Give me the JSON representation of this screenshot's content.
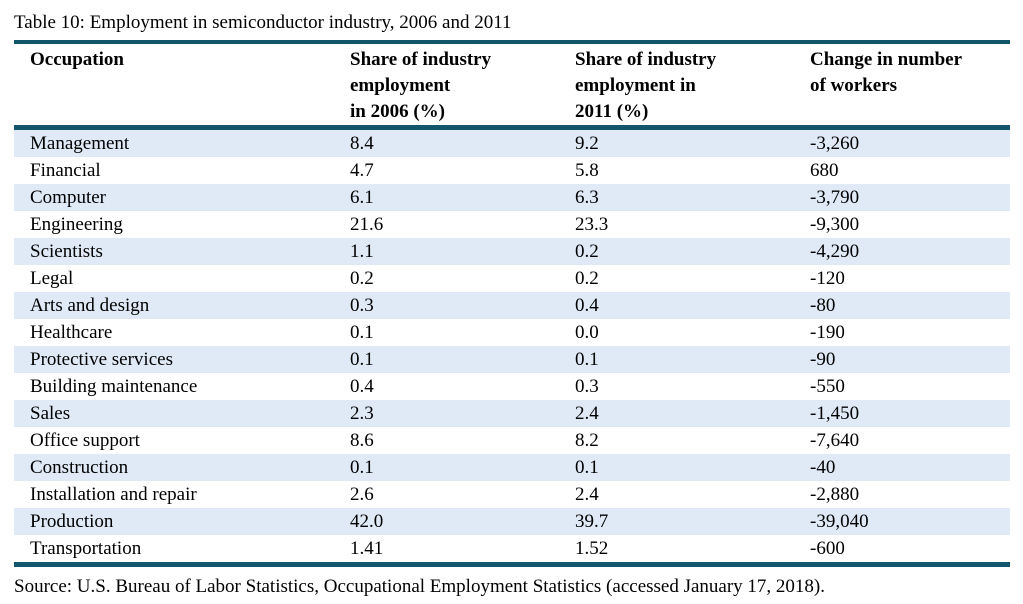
{
  "page": {
    "title": "Table 10: Employment in semiconductor industry, 2006 and 2011",
    "source": "Source: U.S. Bureau of Labor Statistics, Occupational Employment Statistics (accessed January 17, 2018)."
  },
  "colors": {
    "rule": "#12566b",
    "row_stripe": "#e0eaf6"
  },
  "table": {
    "headers": [
      "Occupation",
      "Share of industry\nemployment\nin 2006 (%)",
      "Share of industry\nemployment in\n2011 (%)",
      "Change in number\nof workers"
    ],
    "rows": [
      [
        "Management",
        "8.4",
        "9.2",
        "-3,260"
      ],
      [
        "Financial",
        "4.7",
        "5.8",
        "680"
      ],
      [
        "Computer",
        "6.1",
        "6.3",
        "-3,790"
      ],
      [
        "Engineering",
        "21.6",
        "23.3",
        "-9,300"
      ],
      [
        "Scientists",
        "1.1",
        "0.2",
        "-4,290"
      ],
      [
        "Legal",
        "0.2",
        "0.2",
        "-120"
      ],
      [
        "Arts and design",
        "0.3",
        "0.4",
        "-80"
      ],
      [
        "Healthcare",
        "0.1",
        "0.0",
        "-190"
      ],
      [
        "Protective services",
        "0.1",
        "0.1",
        "-90"
      ],
      [
        "Building maintenance",
        "0.4",
        "0.3",
        "-550"
      ],
      [
        "Sales",
        "2.3",
        "2.4",
        "-1,450"
      ],
      [
        "Office support",
        "8.6",
        "8.2",
        "-7,640"
      ],
      [
        "Construction",
        "0.1",
        "0.1",
        "-40"
      ],
      [
        "Installation and repair",
        "2.6",
        "2.4",
        "-2,880"
      ],
      [
        "Production",
        "42.0",
        "39.7",
        "-39,040"
      ],
      [
        "Transportation",
        "1.41",
        "1.52",
        "-600"
      ]
    ]
  },
  "chart_data": {
    "type": "table",
    "title": "Table 10: Employment in semiconductor industry, 2006 and 2011",
    "columns": [
      "Occupation",
      "Share of industry employment in 2006 (%)",
      "Share of industry employment in 2011 (%)",
      "Change in number of workers"
    ],
    "categories": [
      "Management",
      "Financial",
      "Computer",
      "Engineering",
      "Scientists",
      "Legal",
      "Arts and design",
      "Healthcare",
      "Protective services",
      "Building maintenance",
      "Sales",
      "Office support",
      "Construction",
      "Installation and repair",
      "Production",
      "Transportation"
    ],
    "series": [
      {
        "name": "Share of industry employment in 2006 (%)",
        "values": [
          8.4,
          4.7,
          6.1,
          21.6,
          1.1,
          0.2,
          0.3,
          0.1,
          0.1,
          0.4,
          2.3,
          8.6,
          0.1,
          2.6,
          42.0,
          1.41
        ]
      },
      {
        "name": "Share of industry employment in 2011 (%)",
        "values": [
          9.2,
          5.8,
          6.3,
          23.3,
          0.2,
          0.2,
          0.4,
          0.0,
          0.1,
          0.3,
          2.4,
          8.2,
          0.1,
          2.4,
          39.7,
          1.52
        ]
      },
      {
        "name": "Change in number of workers",
        "values": [
          -3260,
          680,
          -3790,
          -9300,
          -4290,
          -120,
          -80,
          -190,
          -90,
          -550,
          -1450,
          -7640,
          -40,
          -2880,
          -39040,
          -600
        ]
      }
    ],
    "source": "Source: U.S. Bureau of Labor Statistics, Occupational Employment Statistics (accessed January 17, 2018)."
  }
}
